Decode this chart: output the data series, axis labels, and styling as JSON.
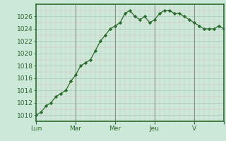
{
  "x_values": [
    0,
    1,
    2,
    3,
    4,
    5,
    6,
    7,
    8,
    9,
    10,
    11,
    12,
    13,
    14,
    15,
    16,
    17,
    18,
    19,
    20,
    21,
    22,
    23,
    24,
    25,
    26,
    27,
    28,
    29,
    30,
    31,
    32,
    33,
    34,
    35,
    36,
    37,
    38
  ],
  "y_values": [
    1010.0,
    1010.5,
    1011.5,
    1012.0,
    1013.0,
    1013.5,
    1014.0,
    1015.5,
    1016.5,
    1018.0,
    1018.5,
    1019.0,
    1020.5,
    1022.0,
    1023.0,
    1024.0,
    1024.5,
    1025.0,
    1026.5,
    1027.0,
    1026.0,
    1025.5,
    1026.0,
    1025.0,
    1025.5,
    1026.5,
    1027.0,
    1027.0,
    1026.5,
    1026.5,
    1026.0,
    1025.5,
    1025.0,
    1024.5,
    1024.0,
    1024.0,
    1024.0,
    1024.5,
    1024.0
  ],
  "x_tick_positions": [
    0,
    8,
    16,
    24,
    32,
    38
  ],
  "x_tick_labels": [
    "Lun",
    "Mar",
    "Mer",
    "Jeu",
    "V",
    ""
  ],
  "y_min": 1009,
  "y_max": 1028,
  "y_ticks": [
    1010,
    1012,
    1014,
    1016,
    1018,
    1020,
    1022,
    1024,
    1026
  ],
  "line_color": "#2d6a2d",
  "marker_color": "#2d6a2d",
  "bg_color": "#cce8d8",
  "grid_color_h_major": "#aacfbf",
  "grid_color_v_minor": "#d8b8b8",
  "axis_color": "#2d6a2d",
  "tick_label_color": "#2d6a2d",
  "vline_positions": [
    8,
    16,
    24,
    32
  ],
  "vline_color": "#c87878"
}
